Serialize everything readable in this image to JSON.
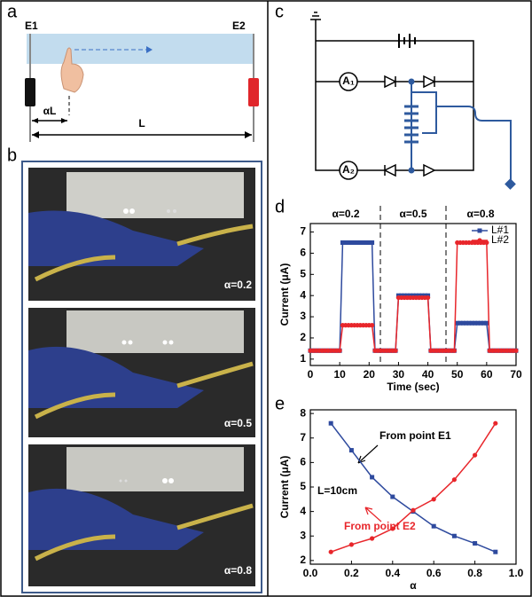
{
  "panels": {
    "a": {
      "label": "a",
      "E1": "E1",
      "E2": "E2",
      "alphaL": "αL",
      "L": "L"
    },
    "b": {
      "label": "b",
      "photos": [
        "α=0.2",
        "α=0.5",
        "α=0.8"
      ]
    },
    "c": {
      "label": "c",
      "ammeters": [
        "A₁",
        "A₂"
      ]
    },
    "d": {
      "label": "d"
    },
    "e": {
      "label": "e"
    }
  },
  "chart_data": [
    {
      "type": "line",
      "xlabel": "Time (sec)",
      "ylabel": "Current (μA)",
      "xlim": [
        0,
        70
      ],
      "xticks": [
        0,
        10,
        20,
        30,
        40,
        50,
        60,
        70
      ],
      "ylim": [
        0.7,
        7.4
      ],
      "yticks": [
        1,
        2,
        3,
        4,
        5,
        6,
        7
      ],
      "legend": "upper right",
      "annotations": [
        {
          "text": "α=0.2",
          "color": "#000000"
        },
        {
          "text": "α=0.5",
          "color": "#000000"
        },
        {
          "text": "α=0.8",
          "color": "#000000"
        }
      ],
      "x": [
        0,
        1,
        2,
        3,
        4,
        5,
        6,
        7,
        8,
        9,
        10,
        11,
        12,
        13,
        14,
        15,
        16,
        17,
        18,
        19,
        20,
        21,
        22,
        23,
        24,
        25,
        26,
        27,
        28,
        29,
        30,
        31,
        32,
        33,
        34,
        35,
        36,
        37,
        38,
        39,
        40,
        41,
        42,
        43,
        44,
        45,
        46,
        47,
        48,
        49,
        50,
        51,
        52,
        53,
        54,
        55,
        56,
        57,
        58,
        59,
        60,
        61,
        62,
        63,
        64,
        65,
        66,
        67,
        68,
        69,
        70
      ],
      "series": [
        {
          "name": "L#1",
          "color": "#2e4a9e",
          "marker": "square",
          "values": [
            1.4,
            1.4,
            1.4,
            1.4,
            1.4,
            1.4,
            1.4,
            1.4,
            1.4,
            1.4,
            1.4,
            6.5,
            6.5,
            6.5,
            6.5,
            6.5,
            6.5,
            6.5,
            6.5,
            6.5,
            6.5,
            6.5,
            1.4,
            1.4,
            1.4,
            1.4,
            1.4,
            1.4,
            1.4,
            1.4,
            4.0,
            4.0,
            4.0,
            4.0,
            4.0,
            4.0,
            4.0,
            4.0,
            4.0,
            4.0,
            4.0,
            1.4,
            1.4,
            1.4,
            1.4,
            1.4,
            1.4,
            1.4,
            1.4,
            1.4,
            2.7,
            2.7,
            2.7,
            2.7,
            2.7,
            2.7,
            2.7,
            2.7,
            2.7,
            2.7,
            2.7,
            1.4,
            1.4,
            1.4,
            1.4,
            1.4,
            1.4,
            1.4,
            1.4,
            1.4,
            1.4
          ]
        },
        {
          "name": "L#2",
          "color": "#e8262b",
          "marker": "circle",
          "values": [
            1.4,
            1.4,
            1.4,
            1.4,
            1.4,
            1.4,
            1.4,
            1.4,
            1.4,
            1.4,
            1.4,
            2.6,
            2.6,
            2.6,
            2.6,
            2.6,
            2.6,
            2.6,
            2.6,
            2.6,
            2.6,
            2.6,
            1.4,
            1.4,
            1.4,
            1.4,
            1.4,
            1.4,
            1.4,
            1.4,
            3.9,
            3.9,
            3.9,
            3.9,
            3.9,
            3.9,
            3.9,
            3.9,
            3.9,
            3.9,
            3.9,
            1.4,
            1.4,
            1.4,
            1.4,
            1.4,
            1.4,
            1.4,
            1.4,
            1.4,
            6.5,
            6.5,
            6.5,
            6.5,
            6.5,
            6.5,
            6.5,
            6.5,
            6.5,
            6.5,
            6.5,
            1.4,
            1.4,
            1.4,
            1.4,
            1.4,
            1.4,
            1.4,
            1.4,
            1.4,
            1.4
          ]
        }
      ]
    },
    {
      "type": "line",
      "xlabel": "α",
      "ylabel": "Current (μA)",
      "xlim": [
        0,
        1
      ],
      "xticks": [
        {
          "value": 0,
          "label": "0.0"
        },
        {
          "value": 0.2,
          "label": "0.2"
        },
        {
          "value": 0.4,
          "label": "0.4"
        },
        {
          "value": 0.6,
          "label": "0.6"
        },
        {
          "value": 0.8,
          "label": "0.8"
        },
        {
          "value": 1,
          "label": "1.0"
        }
      ],
      "ylim": [
        1.85,
        8.15
      ],
      "yticks": [
        2,
        3,
        4,
        5,
        6,
        7,
        8
      ],
      "annotations": [
        {
          "text": "From point E1",
          "color": "#000000"
        },
        {
          "text": "From point E2",
          "color": "#e8262b"
        },
        {
          "text": "L=10cm",
          "color": "#000000"
        }
      ],
      "x": [
        0.1,
        0.2,
        0.3,
        0.4,
        0.5,
        0.6,
        0.7,
        0.8,
        0.9
      ],
      "series": [
        {
          "name": "From point E1",
          "color": "#2e4a9e",
          "marker": "square",
          "values": [
            7.6,
            6.5,
            5.4,
            4.6,
            4.0,
            3.4,
            3.0,
            2.7,
            2.35
          ]
        },
        {
          "name": "From point E2",
          "color": "#e8262b",
          "marker": "circle",
          "values": [
            2.35,
            2.65,
            2.9,
            3.3,
            4.05,
            4.5,
            5.3,
            6.3,
            7.6
          ]
        }
      ]
    }
  ]
}
